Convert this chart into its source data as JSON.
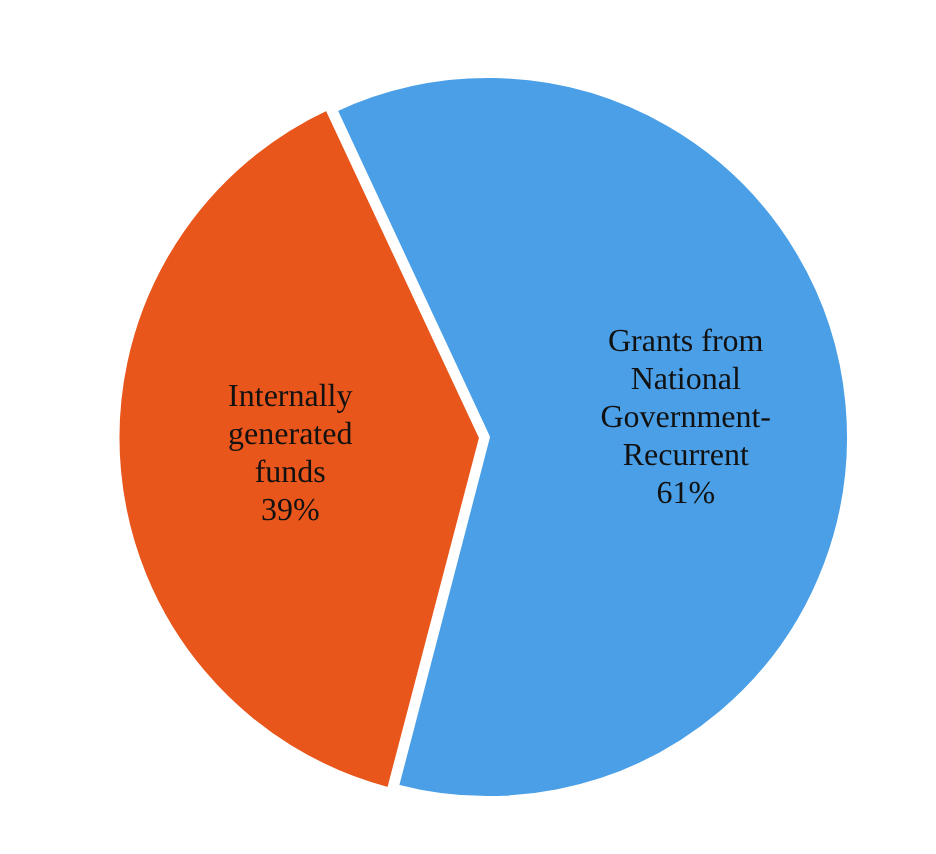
{
  "chart_data": {
    "type": "pie",
    "categories": [
      "Grants from National Government-Recurrent",
      "Internally generated funds"
    ],
    "values": [
      61,
      39
    ],
    "colors": [
      "#4a9fe6",
      "#e8561c"
    ],
    "value_labels": [
      "61%",
      "39%"
    ],
    "legend": false
  }
}
